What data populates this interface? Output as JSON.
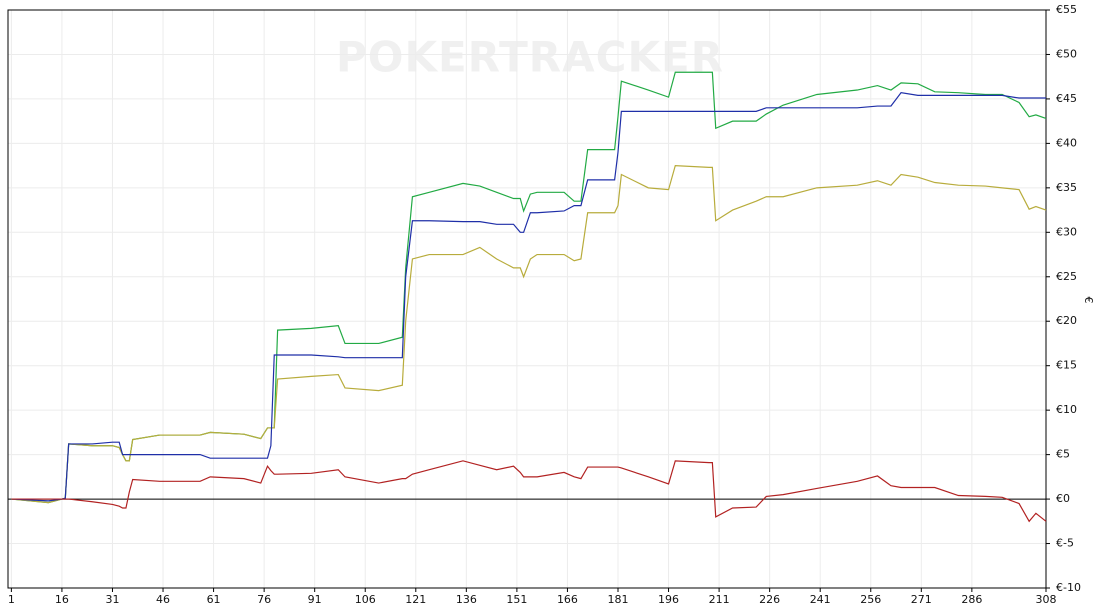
{
  "chart_data": {
    "type": "line",
    "watermark": "POKERTRACKER",
    "ylabel": "€",
    "x": [
      1,
      12,
      16,
      17,
      18,
      25,
      31,
      33,
      34,
      35,
      36,
      37,
      45,
      57,
      60,
      70,
      75,
      77,
      78,
      79,
      80,
      90,
      98,
      100,
      110,
      117,
      118,
      120,
      125,
      135,
      140,
      145,
      150,
      152,
      153,
      155,
      157,
      165,
      168,
      170,
      172,
      180,
      181,
      182,
      190,
      196,
      198,
      208,
      209,
      210,
      215,
      222,
      225,
      230,
      240,
      252,
      258,
      262,
      265,
      270,
      275,
      282,
      290,
      295,
      300,
      303,
      305,
      308
    ],
    "series": [
      {
        "color": "#22aa44",
        "values": [
          0,
          -0.4,
          0,
          0.1,
          6.2,
          6.0,
          6.0,
          5.8,
          5.0,
          4.3,
          4.3,
          6.7,
          7.2,
          7.2,
          7.5,
          7.3,
          6.8,
          8.0,
          8.0,
          8.0,
          19.0,
          19.2,
          19.5,
          17.5,
          17.5,
          18.2,
          26,
          34.0,
          34.5,
          35.5,
          35.2,
          34.5,
          33.8,
          33.8,
          32.4,
          34.3,
          34.5,
          34.5,
          33.5,
          33.5,
          39.3,
          39.3,
          43,
          47.0,
          46.0,
          45.2,
          48.0,
          48.0,
          48.0,
          41.7,
          42.5,
          42.5,
          43.3,
          44.3,
          45.5,
          46.0,
          46.5,
          46.0,
          46.8,
          46.7,
          45.8,
          45.7,
          45.5,
          45.5,
          44.6,
          43.0,
          43.2,
          42.8
        ]
      },
      {
        "color": "#b8ac3c",
        "values": [
          0,
          -0.4,
          0,
          0.1,
          6.2,
          6.0,
          6.0,
          5.8,
          5.0,
          4.3,
          4.3,
          6.7,
          7.2,
          7.2,
          7.5,
          7.3,
          6.8,
          8.0,
          8.0,
          8.0,
          13.5,
          13.8,
          14.0,
          12.5,
          12.2,
          12.8,
          20,
          27.0,
          27.5,
          27.5,
          28.3,
          27.0,
          26.0,
          26.0,
          25.0,
          27.0,
          27.5,
          27.5,
          26.8,
          27.0,
          32.2,
          32.2,
          33,
          36.5,
          35.0,
          34.8,
          37.5,
          37.3,
          37.3,
          31.3,
          32.5,
          33.5,
          34.0,
          34.0,
          35.0,
          35.3,
          35.8,
          35.3,
          36.5,
          36.2,
          35.6,
          35.3,
          35.2,
          35.0,
          34.8,
          32.6,
          32.9,
          32.5
        ]
      },
      {
        "color": "#1f2fa8",
        "values": [
          0,
          -0.2,
          0,
          0.1,
          6.2,
          6.2,
          6.4,
          6.4,
          5.0,
          5.0,
          5.0,
          5.0,
          5.0,
          5.0,
          4.6,
          4.6,
          4.6,
          4.6,
          6.0,
          16.2,
          16.2,
          16.2,
          16.0,
          15.9,
          15.9,
          15.9,
          25,
          31.3,
          31.3,
          31.2,
          31.2,
          30.9,
          30.9,
          30.0,
          30.0,
          32.2,
          32.2,
          32.4,
          33.0,
          33.0,
          35.9,
          35.9,
          39,
          43.6,
          43.6,
          43.6,
          43.6,
          43.6,
          43.6,
          43.6,
          43.6,
          43.6,
          44.0,
          44.0,
          44.0,
          44.0,
          44.2,
          44.2,
          45.7,
          45.4,
          45.4,
          45.4,
          45.4,
          45.4,
          45.1,
          45.1,
          45.1,
          45.1
        ]
      },
      {
        "color": "#b22222",
        "values": [
          0,
          0,
          0,
          0,
          0,
          -0.3,
          -0.6,
          -0.8,
          -1.0,
          -1.0,
          0.8,
          2.2,
          2.0,
          2.0,
          2.5,
          2.3,
          1.8,
          3.7,
          3.2,
          2.8,
          2.8,
          2.9,
          3.3,
          2.5,
          1.8,
          2.3,
          2.3,
          2.8,
          3.3,
          4.3,
          3.8,
          3.3,
          3.7,
          3.0,
          2.5,
          2.5,
          2.5,
          3.0,
          2.5,
          2.3,
          3.6,
          3.6,
          3.6,
          3.5,
          2.5,
          1.7,
          4.3,
          4.1,
          4.1,
          -2.0,
          -1.0,
          -0.9,
          0.3,
          0.5,
          1.2,
          2.0,
          2.6,
          1.5,
          1.3,
          1.3,
          1.3,
          0.4,
          0.3,
          0.2,
          -0.5,
          -2.5,
          -1.6,
          -2.5
        ]
      }
    ],
    "xlim": [
      0,
      308
    ],
    "xticks": [
      1,
      16,
      31,
      46,
      61,
      76,
      91,
      106,
      121,
      136,
      151,
      166,
      181,
      196,
      211,
      226,
      241,
      256,
      271,
      286,
      308
    ],
    "ylim": [
      -10,
      55
    ],
    "yticks": [
      {
        "value": -10,
        "label": "€-10"
      },
      {
        "value": -5,
        "label": "€-5"
      },
      {
        "value": 0,
        "label": "€0"
      },
      {
        "value": 5,
        "label": "€5"
      },
      {
        "value": 10,
        "label": "€10"
      },
      {
        "value": 15,
        "label": "€15"
      },
      {
        "value": 20,
        "label": "€20"
      },
      {
        "value": 25,
        "label": "€25"
      },
      {
        "value": 30,
        "label": "€30"
      },
      {
        "value": 35,
        "label": "€35"
      },
      {
        "value": 40,
        "label": "€40"
      },
      {
        "value": 45,
        "label": "€45"
      },
      {
        "value": 50,
        "label": "€50"
      },
      {
        "value": 55,
        "label": "€55"
      }
    ],
    "grid": true
  }
}
